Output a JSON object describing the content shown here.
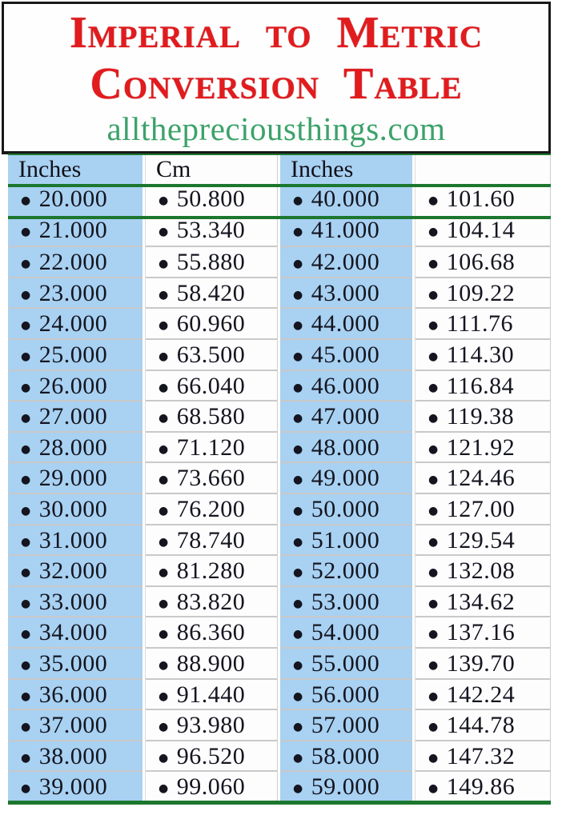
{
  "header_box": {
    "title_line1": "Imperial to Metric",
    "title_line2": "Conversion Table",
    "website": "allthepreciousthings.com"
  },
  "colors": {
    "title_red": "#e11b1e",
    "website_green": "#3ca26a",
    "column_blue": "#a8d1f2",
    "divider_green": "#1c772e",
    "separator_gray": "#c9c9c9",
    "border_black": "#181818"
  },
  "table": {
    "bullet": "●",
    "columns": [
      {
        "label": "Inches",
        "bg": "blue"
      },
      {
        "label": "Cm",
        "bg": "white"
      },
      {
        "label": "Inches",
        "bg": "blue"
      },
      {
        "label": "",
        "bg": "white"
      }
    ],
    "rows": [
      [
        "20.000",
        "50.800",
        "40.000",
        "101.60"
      ],
      [
        "21.000",
        "53.340",
        "41.000",
        "104.14"
      ],
      [
        "22.000",
        "55.880",
        "42.000",
        "106.68"
      ],
      [
        "23.000",
        "58.420",
        "43.000",
        "109.22"
      ],
      [
        "24.000",
        "60.960",
        "44.000",
        "111.76"
      ],
      [
        "25.000",
        "63.500",
        "45.000",
        "114.30"
      ],
      [
        "26.000",
        "66.040",
        "46.000",
        "116.84"
      ],
      [
        "27.000",
        "68.580",
        "47.000",
        "119.38"
      ],
      [
        "28.000",
        "71.120",
        "48.000",
        "121.92"
      ],
      [
        "29.000",
        "73.660",
        "49.000",
        "124.46"
      ],
      [
        "30.000",
        "76.200",
        "50.000",
        "127.00"
      ],
      [
        "31.000",
        "78.740",
        "51.000",
        "129.54"
      ],
      [
        "32.000",
        "81.280",
        "52.000",
        "132.08"
      ],
      [
        "33.000",
        "83.820",
        "53.000",
        "134.62"
      ],
      [
        "34.000",
        "86.360",
        "54.000",
        "137.16"
      ],
      [
        "35.000",
        "88.900",
        "55.000",
        "139.70"
      ],
      [
        "36.000",
        "91.440",
        "56.000",
        "142.24"
      ],
      [
        "37.000",
        "93.980",
        "57.000",
        "144.78"
      ],
      [
        "38.000",
        "96.520",
        "58.000",
        "147.32"
      ],
      [
        "39.000",
        "99.060",
        "59.000",
        "149.86"
      ]
    ]
  }
}
